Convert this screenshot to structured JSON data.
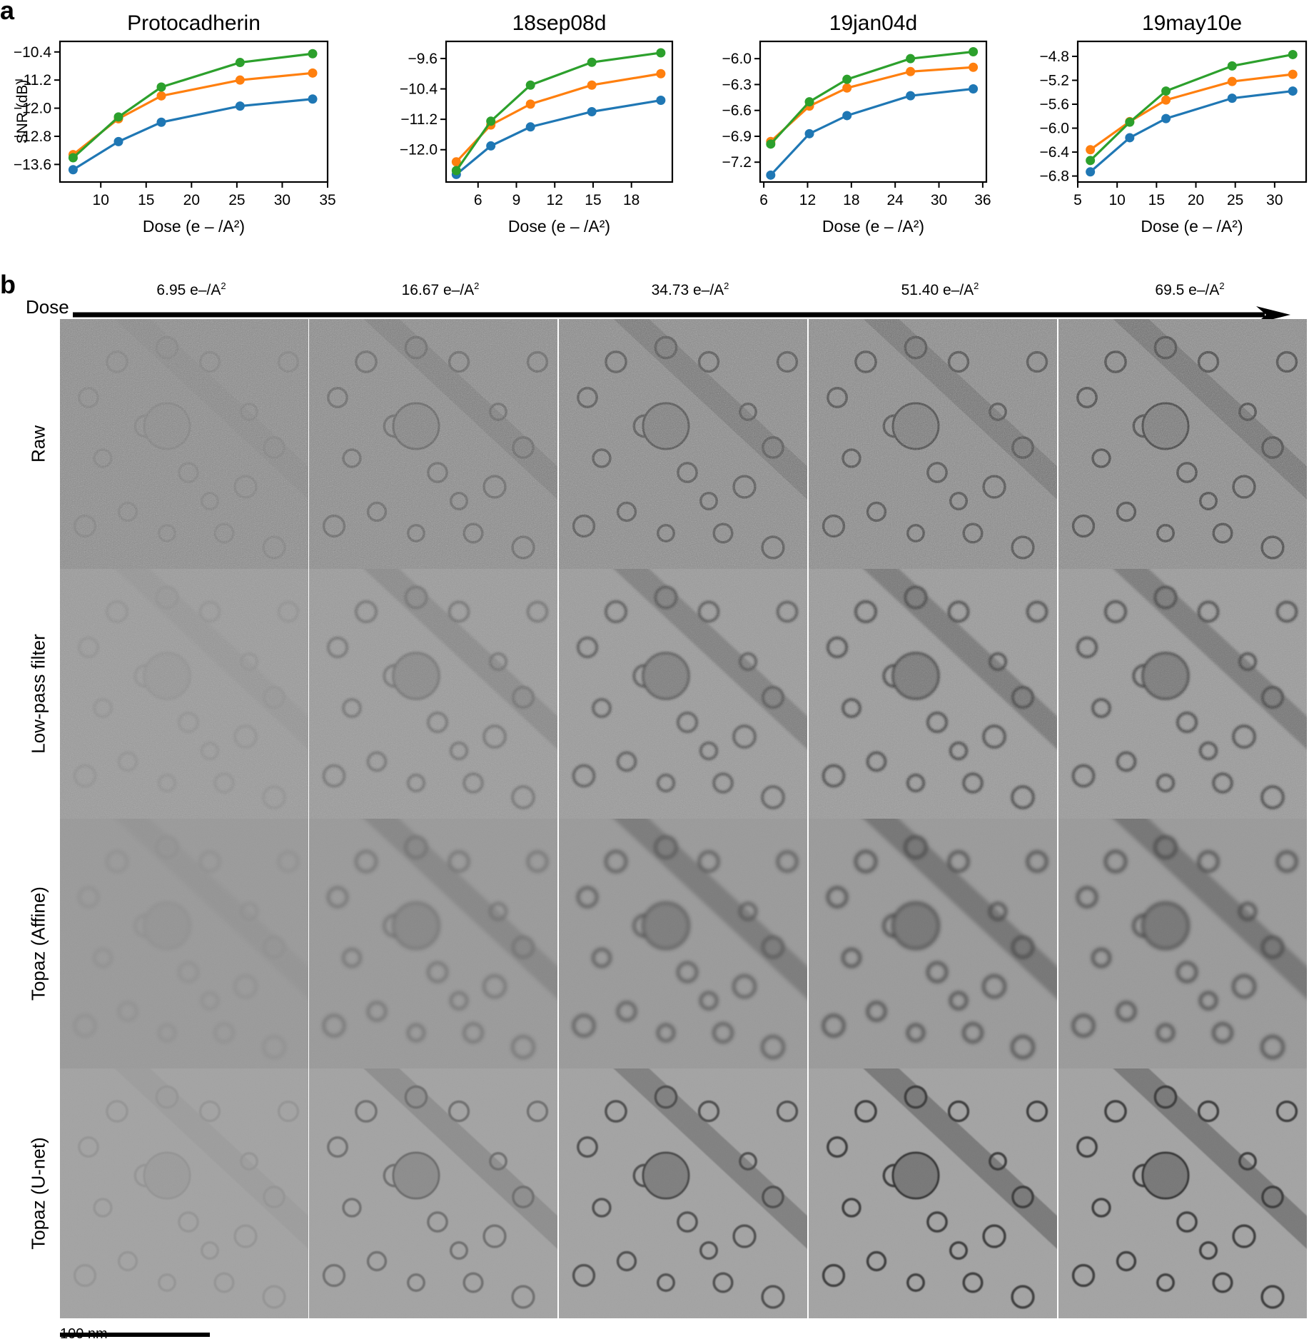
{
  "panel_labels": {
    "a": "a",
    "b": "b"
  },
  "chart_data": [
    {
      "type": "line",
      "title": "Protocadherin",
      "xlabel": "Dose (e – /A²)",
      "ylabel": "SNR (dB)",
      "xlim": [
        5.5,
        35
      ],
      "ylim": [
        -14.1,
        -10.1
      ],
      "xticks": [
        10,
        15,
        20,
        25,
        30,
        35
      ],
      "yticks": [
        -13.6,
        -12.8,
        -12.0,
        -11.2,
        -10.4
      ],
      "x": [
        6.95,
        11.95,
        16.67,
        25.35,
        33.35
      ],
      "series": [
        {
          "values": [
            -13.75,
            -12.95,
            -12.4,
            -11.94,
            -11.74
          ],
          "color": "#1f77b4"
        },
        {
          "values": [
            -13.32,
            -12.3,
            -11.65,
            -11.2,
            -11.0
          ],
          "color": "#ff7f0e"
        },
        {
          "values": [
            -13.41,
            -12.25,
            -11.4,
            -10.7,
            -10.45
          ],
          "color": "#2ca02c"
        }
      ]
    },
    {
      "type": "line",
      "title": "18sep08d",
      "xlabel": "Dose (e – /A²)",
      "ylabel": "",
      "xlim": [
        3.5,
        21.2
      ],
      "ylim": [
        -12.85,
        -9.15
      ],
      "xticks": [
        6,
        9,
        12,
        15,
        18
      ],
      "yticks": [
        -12.0,
        -11.2,
        -10.4,
        -9.6
      ],
      "x": [
        4.3,
        7.0,
        10.1,
        14.9,
        20.3
      ],
      "series": [
        {
          "values": [
            -12.65,
            -11.9,
            -11.4,
            -11.0,
            -10.7
          ],
          "color": "#1f77b4"
        },
        {
          "values": [
            -12.32,
            -11.35,
            -10.8,
            -10.3,
            -10.0
          ],
          "color": "#ff7f0e"
        },
        {
          "values": [
            -12.55,
            -11.25,
            -10.3,
            -9.7,
            -9.45
          ],
          "color": "#2ca02c"
        }
      ]
    },
    {
      "type": "line",
      "title": "19jan04d",
      "xlabel": "Dose (e – /A²)",
      "ylabel": "",
      "xlim": [
        5.5,
        36.5
      ],
      "ylim": [
        -7.43,
        -5.8
      ],
      "xticks": [
        6,
        12,
        18,
        24,
        30,
        36
      ],
      "yticks": [
        -7.2,
        -6.9,
        -6.6,
        -6.3,
        -6.0
      ],
      "x": [
        6.95,
        12.25,
        17.4,
        26.1,
        34.7
      ],
      "series": [
        {
          "values": [
            -7.35,
            -6.87,
            -6.66,
            -6.43,
            -6.35
          ],
          "color": "#1f77b4"
        },
        {
          "values": [
            -6.96,
            -6.55,
            -6.34,
            -6.15,
            -6.1
          ],
          "color": "#ff7f0e"
        },
        {
          "values": [
            -6.99,
            -6.5,
            -6.24,
            -6.0,
            -5.92
          ],
          "color": "#2ca02c"
        }
      ]
    },
    {
      "type": "line",
      "title": "19may10e",
      "xlabel": "Dose (e – /A²)",
      "ylabel": "",
      "xlim": [
        5,
        34
      ],
      "ylim": [
        -6.9,
        -4.55
      ],
      "xticks": [
        5,
        10,
        15,
        20,
        25,
        30
      ],
      "yticks": [
        -6.8,
        -6.4,
        -6.0,
        -5.6,
        -5.2,
        -4.8
      ],
      "x": [
        6.6,
        11.6,
        16.2,
        24.6,
        32.3
      ],
      "series": [
        {
          "values": [
            -6.73,
            -6.16,
            -5.84,
            -5.5,
            -5.38
          ],
          "color": "#1f77b4"
        },
        {
          "values": [
            -6.36,
            -5.89,
            -5.53,
            -5.22,
            -5.1
          ],
          "color": "#ff7f0e"
        },
        {
          "values": [
            -6.54,
            -5.9,
            -5.38,
            -4.96,
            -4.77
          ],
          "color": "#2ca02c"
        }
      ]
    }
  ],
  "dose_row": {
    "label": "Dose",
    "doses": [
      {
        "value": "6.95 e–/A",
        "sup": "2"
      },
      {
        "value": "16.67 e–/A",
        "sup": "2"
      },
      {
        "value": "34.73 e–/A",
        "sup": "2"
      },
      {
        "value": "51.40 e–/A",
        "sup": "2"
      },
      {
        "value": "69.5 e–/A",
        "sup": "2"
      }
    ]
  },
  "grid": {
    "rows": [
      {
        "label": "Raw",
        "noise": 0.55,
        "blur": 0.2,
        "bg": "#8a8a8a"
      },
      {
        "label": "Low-pass filter",
        "noise": 0.35,
        "blur": 1.5,
        "bg": "#9b9b9b"
      },
      {
        "label": "Topaz (Affine)",
        "noise": 0.1,
        "blur": 2.6,
        "bg": "#9a9a9a"
      },
      {
        "label": "Topaz (U-net)",
        "noise": 0.08,
        "blur": 0.9,
        "bg": "#a3a3a3"
      }
    ],
    "signal_by_column": [
      0.15,
      0.5,
      0.75,
      0.85,
      0.95
    ]
  },
  "scale_bar": {
    "label": "100 nm"
  }
}
